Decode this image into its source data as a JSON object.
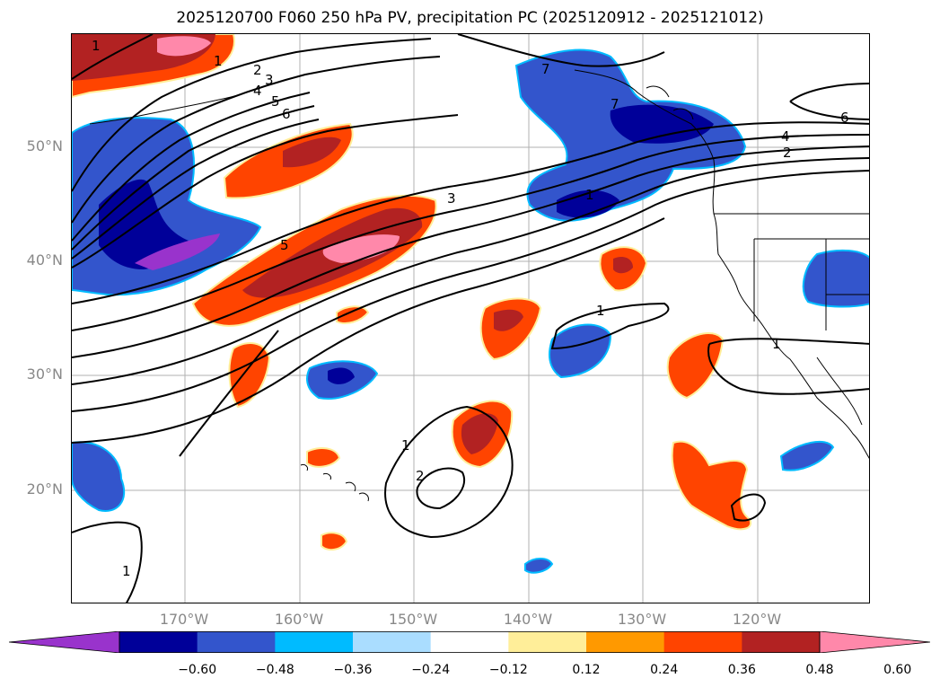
{
  "title": "2025120700 F060 250 hPa PV, precipitation PC (2025120912 - 2025121012)",
  "map": {
    "lat_labels": [
      "50°N",
      "40°N",
      "30°N",
      "20°N"
    ],
    "lon_labels": [
      "170°W",
      "160°W",
      "150°W",
      "140°W",
      "130°W",
      "120°W"
    ],
    "contour_labels": [
      "1",
      "1",
      "2",
      "3",
      "4",
      "5",
      "6",
      "7",
      "7",
      "6",
      "4",
      "2",
      "3",
      "5",
      "1",
      "1",
      "1",
      "1",
      "2",
      "1"
    ]
  },
  "colorbar": {
    "colors": [
      "#9933cc",
      "#000099",
      "#3355cc",
      "#00bbff",
      "#aaddff",
      "#ffffff",
      "#ffee99",
      "#ff9900",
      "#ff4400",
      "#b22222",
      "#ff88aa"
    ],
    "tick_labels": [
      "−0.60",
      "−0.48",
      "−0.36",
      "−0.24",
      "−0.12",
      "0.12",
      "0.24",
      "0.36",
      "0.48",
      "0.60"
    ]
  }
}
